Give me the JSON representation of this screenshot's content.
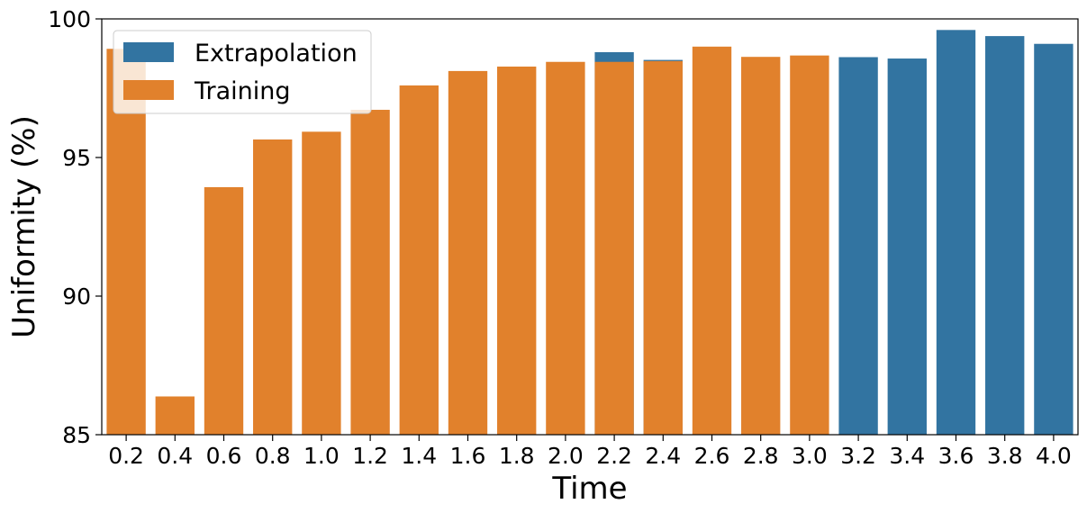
{
  "chart_data": {
    "type": "bar",
    "title": "",
    "xlabel": "Time",
    "ylabel": "Uniformity (%)",
    "ylim": [
      85,
      100
    ],
    "yticks": [
      85,
      90,
      95,
      100
    ],
    "categories": [
      "0.2",
      "0.4",
      "0.6",
      "0.8",
      "1.0",
      "1.2",
      "1.4",
      "1.6",
      "1.8",
      "2.0",
      "2.2",
      "2.4",
      "2.6",
      "2.8",
      "3.0",
      "3.2",
      "3.4",
      "3.6",
      "3.8",
      "4.0"
    ],
    "series": [
      {
        "name": "Extrapolation",
        "color": "#3274a1",
        "values": [
          null,
          null,
          null,
          null,
          null,
          null,
          null,
          null,
          null,
          null,
          98.8,
          98.52,
          null,
          null,
          null,
          98.62,
          98.57,
          99.6,
          99.38,
          99.1
        ]
      },
      {
        "name": "Training",
        "color": "#e1812c",
        "values": [
          98.92,
          86.38,
          93.93,
          95.65,
          95.93,
          96.72,
          97.6,
          98.12,
          98.28,
          98.45,
          98.45,
          98.48,
          99.0,
          98.63,
          98.68,
          null,
          null,
          null,
          null,
          null
        ]
      }
    ],
    "grid": false,
    "legend_position": "top-left"
  }
}
